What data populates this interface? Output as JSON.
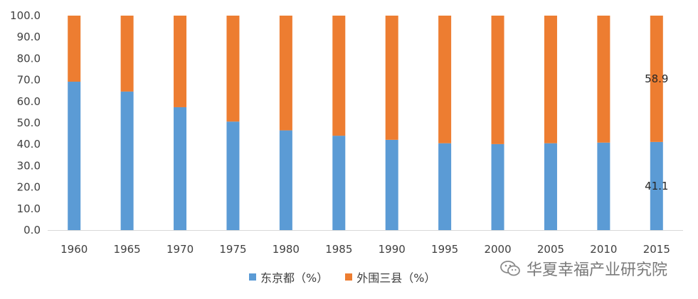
{
  "chart_data": {
    "type": "bar",
    "stacked": true,
    "categories": [
      "1960",
      "1965",
      "1970",
      "1975",
      "1980",
      "1985",
      "1990",
      "1995",
      "2000",
      "2005",
      "2010",
      "2015"
    ],
    "series": [
      {
        "name": "东京都（%）",
        "color": "#5b9bd5",
        "values": [
          69.2,
          64.6,
          57.3,
          50.6,
          46.5,
          44.0,
          42.1,
          40.5,
          40.1,
          40.5,
          40.8,
          41.1
        ]
      },
      {
        "name": "外围三县（%）",
        "color": "#ed7d31",
        "values": [
          30.8,
          35.4,
          42.7,
          49.4,
          53.5,
          56.0,
          57.9,
          59.5,
          59.9,
          59.5,
          59.2,
          58.9
        ]
      }
    ],
    "ylim": [
      0,
      100
    ],
    "yticks": [
      "0.0",
      "10.0",
      "20.0",
      "30.0",
      "40.0",
      "50.0",
      "60.0",
      "70.0",
      "80.0",
      "90.0",
      "100.0"
    ],
    "data_labels": [
      {
        "series": 1,
        "category": "2015",
        "text": "58.9"
      },
      {
        "series": 0,
        "category": "2015",
        "text": "41.1"
      }
    ],
    "grid": false,
    "legend_position": "bottom"
  },
  "legend": {
    "items": [
      {
        "label": "东京都（%）",
        "color": "#5b9bd5"
      },
      {
        "label": "外围三县（%）",
        "color": "#ed7d31"
      }
    ]
  },
  "watermark": {
    "text": "华夏幸福产业研究院",
    "icon": "wechat-icon"
  }
}
